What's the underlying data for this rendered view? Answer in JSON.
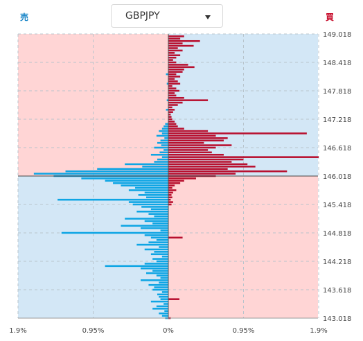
{
  "header": {
    "sell_label": "売",
    "buy_label": "買",
    "symbol": "GBPJPY"
  },
  "colors": {
    "sell_bar": "#0ea5e4",
    "buy_bar": "#b8102f",
    "pink_area": "#ffd5d5",
    "blue_area": "#d3e7f6",
    "current_price_line": "#444444"
  },
  "icons": {
    "caret": "chevron-down-icon"
  },
  "chart_data": {
    "type": "bar",
    "orientation": "horizontal",
    "x_ticks": [
      "1.9%",
      "0.95%",
      "0%",
      "0.95%",
      "1.9%"
    ],
    "y_ticks": [
      "149.018",
      "148.418",
      "147.818",
      "147.218",
      "146.618",
      "146.018",
      "145.418",
      "144.818",
      "144.218",
      "143.618",
      "143.018"
    ],
    "xlim": [
      -1.9,
      1.9
    ],
    "ylim": [
      143.018,
      149.018
    ],
    "current_price": 146.018,
    "bin_size": 0.05,
    "grid": true,
    "series": [
      {
        "side": "sell",
        "points": [
          [
            146.968,
            0.12
          ],
          [
            146.918,
            0.08
          ],
          [
            146.868,
            0.15
          ],
          [
            146.818,
            0.05
          ],
          [
            146.768,
            0.1
          ],
          [
            146.718,
            0.14
          ],
          [
            146.668,
            0.09
          ],
          [
            146.618,
            0.18
          ],
          [
            146.568,
            0.06
          ],
          [
            146.518,
            0.11
          ],
          [
            146.468,
            0.22
          ],
          [
            146.418,
            0.08
          ],
          [
            146.368,
            0.14
          ],
          [
            146.318,
            0.18
          ],
          [
            146.268,
            0.55
          ],
          [
            146.218,
            0.33
          ],
          [
            146.168,
            0.9
          ],
          [
            146.118,
            1.3
          ],
          [
            146.068,
            1.7
          ],
          [
            146.018,
            1.45
          ],
          [
            145.968,
            1.1
          ],
          [
            145.918,
            0.8
          ],
          [
            145.868,
            0.7
          ],
          [
            145.818,
            0.6
          ],
          [
            145.768,
            0.42
          ],
          [
            145.718,
            0.5
          ],
          [
            145.668,
            0.3
          ],
          [
            145.618,
            0.38
          ],
          [
            145.568,
            0.28
          ],
          [
            145.518,
            1.4
          ],
          [
            145.468,
            0.5
          ],
          [
            145.418,
            0.45
          ],
          [
            145.368,
            0.34
          ],
          [
            145.318,
            0.22
          ],
          [
            145.268,
            0.4
          ],
          [
            145.218,
            0.25
          ],
          [
            145.168,
            0.18
          ],
          [
            145.118,
            0.55
          ],
          [
            145.068,
            0.3
          ],
          [
            145.018,
            0.2
          ],
          [
            144.968,
            0.6
          ],
          [
            144.918,
            0.35
          ],
          [
            144.868,
            0.1
          ],
          [
            144.818,
            1.35
          ],
          [
            144.768,
            0.3
          ],
          [
            144.718,
            0.22
          ],
          [
            144.668,
            0.15
          ],
          [
            144.618,
            0.25
          ],
          [
            144.568,
            0.4
          ],
          [
            144.518,
            0.12
          ],
          [
            144.468,
            0.3
          ],
          [
            144.418,
            0.18
          ],
          [
            144.368,
            0.22
          ],
          [
            144.318,
            0.08
          ],
          [
            144.268,
            0.2
          ],
          [
            144.218,
            0.15
          ],
          [
            144.168,
            0.3
          ],
          [
            144.118,
            0.8
          ],
          [
            144.068,
            0.35
          ],
          [
            144.018,
            0.2
          ],
          [
            143.968,
            0.28
          ],
          [
            143.918,
            0.15
          ],
          [
            143.868,
            0.1
          ],
          [
            143.818,
            0.35
          ],
          [
            143.768,
            0.12
          ],
          [
            143.718,
            0.25
          ],
          [
            143.668,
            0.18
          ],
          [
            143.618,
            0.2
          ],
          [
            143.568,
            0.08
          ],
          [
            143.518,
            0.14
          ],
          [
            143.468,
            0.12
          ],
          [
            143.418,
            0.1
          ],
          [
            143.368,
            0.22
          ],
          [
            143.318,
            0.06
          ],
          [
            143.268,
            0.15
          ],
          [
            143.218,
            0.2
          ],
          [
            143.168,
            0.05
          ],
          [
            143.118,
            0.12
          ],
          [
            143.068,
            0.08
          ],
          [
            143.018,
            0.04
          ],
          [
            148.168,
            0.03
          ],
          [
            147.968,
            0.02
          ],
          [
            147.618,
            0.02
          ],
          [
            147.418,
            0.03
          ],
          [
            147.118,
            0.04
          ],
          [
            147.068,
            0.06
          ],
          [
            147.018,
            0.08
          ]
        ]
      },
      {
        "side": "buy",
        "points": [
          [
            148.968,
            0.2
          ],
          [
            148.918,
            0.15
          ],
          [
            148.868,
            0.4
          ],
          [
            148.818,
            0.18
          ],
          [
            148.768,
            0.32
          ],
          [
            148.718,
            0.12
          ],
          [
            148.668,
            0.18
          ],
          [
            148.618,
            0.08
          ],
          [
            148.568,
            0.15
          ],
          [
            148.518,
            0.1
          ],
          [
            148.468,
            0.06
          ],
          [
            148.418,
            0.1
          ],
          [
            148.368,
            0.25
          ],
          [
            148.318,
            0.33
          ],
          [
            148.268,
            0.2
          ],
          [
            148.218,
            0.18
          ],
          [
            148.168,
            0.1
          ],
          [
            148.118,
            0.15
          ],
          [
            148.068,
            0.08
          ],
          [
            148.018,
            0.12
          ],
          [
            147.968,
            0.15
          ],
          [
            147.918,
            0.05
          ],
          [
            147.868,
            0.1
          ],
          [
            147.818,
            0.14
          ],
          [
            147.768,
            0.08
          ],
          [
            147.718,
            0.1
          ],
          [
            147.668,
            0.2
          ],
          [
            147.618,
            0.5
          ],
          [
            147.568,
            0.18
          ],
          [
            147.518,
            0.12
          ],
          [
            147.468,
            0.05
          ],
          [
            147.418,
            0.08
          ],
          [
            147.368,
            0.06
          ],
          [
            147.318,
            0.03
          ],
          [
            147.268,
            0.04
          ],
          [
            147.218,
            0.05
          ],
          [
            147.168,
            0.08
          ],
          [
            147.118,
            0.1
          ],
          [
            147.068,
            0.12
          ],
          [
            147.018,
            0.2
          ],
          [
            146.968,
            0.5
          ],
          [
            146.918,
            1.75
          ],
          [
            146.868,
            0.6
          ],
          [
            146.818,
            0.75
          ],
          [
            146.768,
            0.7
          ],
          [
            146.718,
            0.45
          ],
          [
            146.668,
            0.8
          ],
          [
            146.618,
            0.6
          ],
          [
            146.568,
            0.5
          ],
          [
            146.518,
            0.55
          ],
          [
            146.468,
            0.7
          ],
          [
            146.418,
            1.9
          ],
          [
            146.368,
            0.95
          ],
          [
            146.318,
            0.8
          ],
          [
            146.268,
            1.0
          ],
          [
            146.218,
            1.1
          ],
          [
            146.168,
            0.75
          ],
          [
            146.118,
            1.5
          ],
          [
            146.068,
            0.85
          ],
          [
            146.018,
            0.6
          ],
          [
            145.968,
            0.35
          ],
          [
            145.918,
            0.2
          ],
          [
            145.868,
            0.15
          ],
          [
            145.818,
            0.08
          ],
          [
            145.768,
            0.05
          ],
          [
            145.718,
            0.1
          ],
          [
            145.668,
            0.06
          ],
          [
            145.618,
            0.04
          ],
          [
            145.568,
            0.05
          ],
          [
            145.518,
            0.03
          ],
          [
            145.468,
            0.06
          ],
          [
            145.418,
            0.04
          ],
          [
            144.718,
            0.18
          ],
          [
            143.418,
            0.14
          ],
          [
            143.018,
            0.03
          ]
        ]
      }
    ]
  }
}
